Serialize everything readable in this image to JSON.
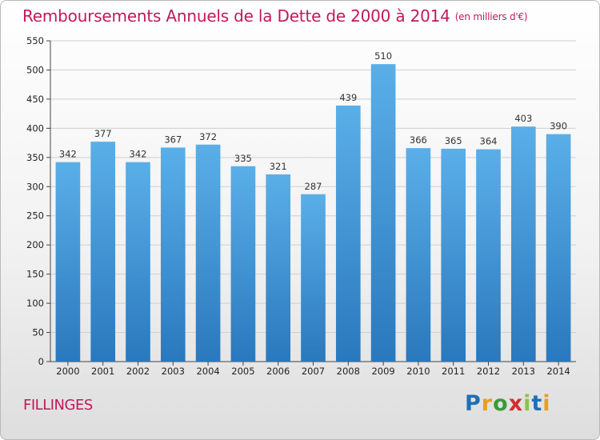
{
  "chart_data": {
    "type": "bar",
    "title": "Remboursements Annuels de la Dette de 2000 à 2014",
    "unit_label": "(en milliers d'€)",
    "categories": [
      "2000",
      "2001",
      "2002",
      "2003",
      "2004",
      "2005",
      "2006",
      "2007",
      "2008",
      "2009",
      "2010",
      "2011",
      "2012",
      "2013",
      "2014"
    ],
    "values": [
      342,
      377,
      342,
      367,
      372,
      335,
      321,
      287,
      439,
      510,
      366,
      365,
      364,
      403,
      390
    ],
    "ylim": [
      0,
      550
    ],
    "yticks": [
      0,
      50,
      100,
      150,
      200,
      250,
      300,
      350,
      400,
      450,
      500,
      550
    ],
    "grid": true,
    "bar_color": "#4aa3df",
    "xlabel": "",
    "ylabel": ""
  },
  "footer": {
    "commune": "FILLINGES",
    "logo_letters": [
      "P",
      "r",
      "o",
      "x",
      "i",
      "t",
      "i"
    ],
    "logo_colors": [
      "#1f6fb5",
      "#e6a01c",
      "#3b9a3b",
      "#d62c2c",
      "#8bc34a",
      "#1f6fb5",
      "#e6a01c"
    ]
  },
  "colors": {
    "title": "#c2185b"
  }
}
